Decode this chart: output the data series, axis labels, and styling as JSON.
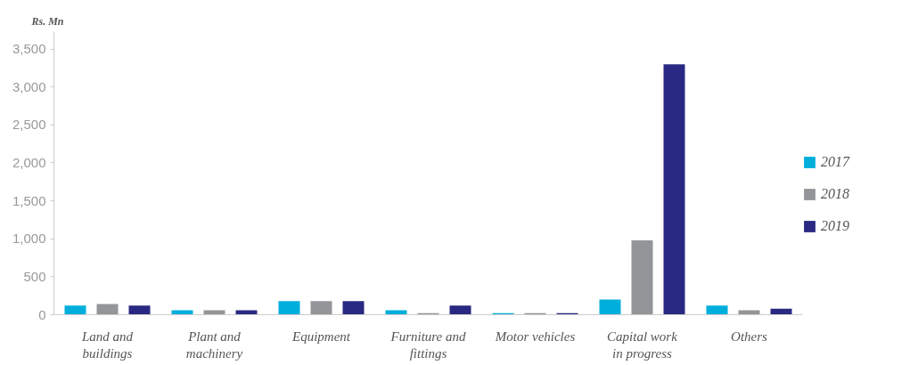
{
  "chart_data": {
    "type": "bar",
    "ylabel": "Rs. Mn",
    "categories": [
      "Land and\nbuildings",
      "Plant and\nmachinery",
      "Equipment",
      "Furniture and\nfittings",
      "Motor vehicles",
      "Capital work\nin progress",
      "Others"
    ],
    "series": [
      {
        "name": "2017",
        "color": "#00aedc",
        "values": [
          120,
          60,
          180,
          60,
          20,
          200,
          120
        ]
      },
      {
        "name": "2018",
        "color": "#939598",
        "values": [
          140,
          60,
          180,
          20,
          20,
          980,
          60
        ]
      },
      {
        "name": "2019",
        "color": "#292882",
        "values": [
          120,
          60,
          180,
          120,
          20,
          3300,
          80
        ]
      }
    ],
    "ylim": [
      0,
      3730
    ],
    "yticks": [
      0,
      {
        "value": 500,
        "label": "500"
      },
      {
        "value": 1000,
        "label": "1,000"
      },
      {
        "value": 1500,
        "label": "1,500"
      },
      {
        "value": 2000,
        "label": "2,000"
      },
      {
        "value": 2500,
        "label": "2,500"
      },
      {
        "value": 3000,
        "label": "3,000"
      },
      {
        "value": 3500,
        "label": "3,500"
      }
    ],
    "grid": false,
    "legend": "right"
  }
}
